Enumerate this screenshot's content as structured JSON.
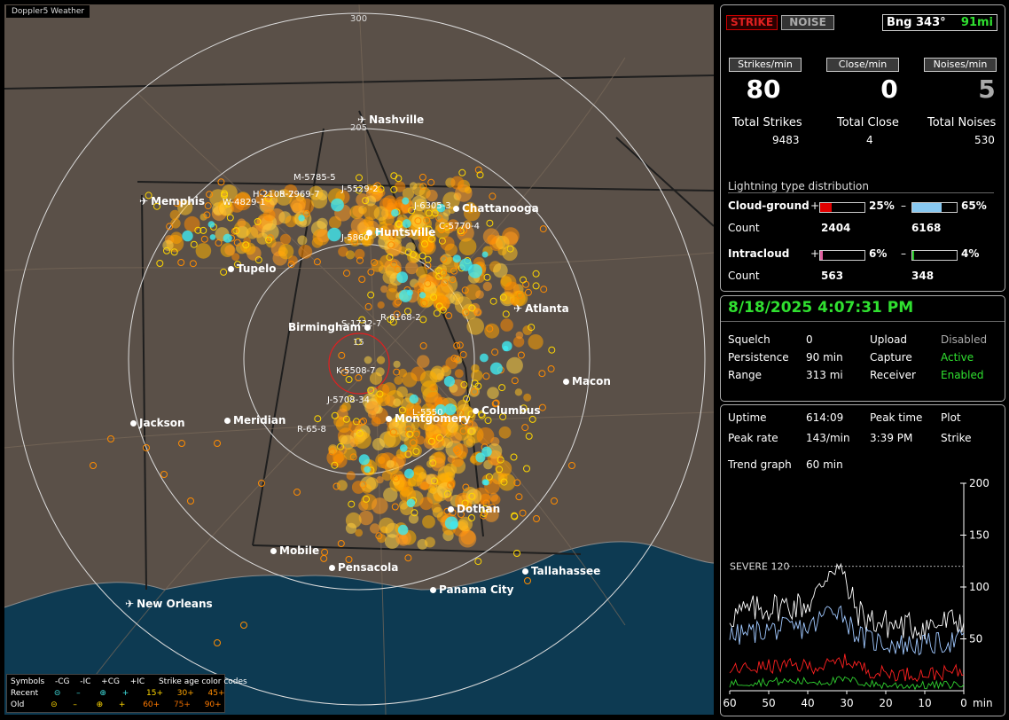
{
  "app_title": "Doppler5 Weather",
  "map": {
    "ring_labels": [
      "300",
      "205",
      "15"
    ],
    "cities": [
      {
        "name": "Nashville",
        "type": "airport"
      },
      {
        "name": "Memphis",
        "type": "airport"
      },
      {
        "name": "Chattanooga",
        "type": "city"
      },
      {
        "name": "Huntsville",
        "type": "city"
      },
      {
        "name": "Tupelo",
        "type": "city"
      },
      {
        "name": "Atlanta",
        "type": "airport"
      },
      {
        "name": "Birmingham",
        "type": "city"
      },
      {
        "name": "Macon",
        "type": "city"
      },
      {
        "name": "Jackson",
        "type": "city"
      },
      {
        "name": "Meridian",
        "type": "city"
      },
      {
        "name": "Montgomery",
        "type": "city"
      },
      {
        "name": "Columbus",
        "type": "city"
      },
      {
        "name": "Dothan",
        "type": "city"
      },
      {
        "name": "Mobile",
        "type": "city"
      },
      {
        "name": "Pensacola",
        "type": "city"
      },
      {
        "name": "Tallahassee",
        "type": "city"
      },
      {
        "name": "Panama City",
        "type": "city"
      },
      {
        "name": "New Orleans",
        "type": "airport"
      }
    ],
    "cell_labels": [
      "M-5785-5",
      "J-5529-2",
      "H-2105-7",
      "R-2969-7",
      "W-4829-1",
      "J-6305-3",
      "C-5770-4",
      "J-5860",
      "S-1732-7",
      "R-6168-2",
      "K-5508-7",
      "J-5708-34",
      "R-65-8",
      "L-5550"
    ]
  },
  "legend": {
    "symbols_label": "Symbols",
    "headers": [
      "-CG",
      "-IC",
      "+CG",
      "+IC"
    ],
    "recent_label": "Recent",
    "old_label": "Old",
    "age_label": "Strike age color codes",
    "recent_ages": [
      "15+",
      "30+",
      "45+"
    ],
    "old_ages": [
      "60+",
      "75+",
      "90+"
    ],
    "age_colors": [
      "#ffd700",
      "#ffa500",
      "#ff8c00",
      "#ff7a00",
      "#e36a00",
      "#c85a00"
    ]
  },
  "top": {
    "strike_btn": "STRIKE",
    "noise_btn": "NOISE",
    "bearing": "Bng 343°",
    "distance": "91mi"
  },
  "rates": {
    "strikes_label": "Strikes/min",
    "close_label": "Close/min",
    "noises_label": "Noises/min",
    "strikes_value": "80",
    "close_value": "0",
    "noises_value": "5"
  },
  "totals": {
    "strikes_label": "Total Strikes",
    "strikes_value": "9483",
    "close_label": "Total Close",
    "close_value": "4",
    "noises_label": "Total Noises",
    "noises_value": "530"
  },
  "distribution": {
    "title": "Lightning type distribution",
    "cg_label": "Cloud-ground",
    "ic_label": "Intracloud",
    "count_label": "Count",
    "plus": "+",
    "minus": "–",
    "cg_pos_pct": "25%",
    "cg_pos_frac": 0.25,
    "cg_pos_count": "2404",
    "cg_neg_pct": "65%",
    "cg_neg_frac": 0.65,
    "cg_neg_count": "6168",
    "ic_pos_pct": "6%",
    "ic_pos_frac": 0.06,
    "ic_pos_count": "563",
    "ic_neg_pct": "4%",
    "ic_neg_frac": 0.04,
    "ic_neg_count": "348",
    "colors": {
      "cg_pos": "#e00000",
      "cg_neg": "#88c8f0",
      "ic_pos": "#e060a0",
      "ic_neg": "#20c020"
    }
  },
  "status": {
    "datetime": "8/18/2025 4:07:31 PM",
    "squelch_label": "Squelch",
    "squelch_value": "0",
    "upload_label": "Upload",
    "upload_value": "Disabled",
    "persistence_label": "Persistence",
    "persistence_value": "90 min",
    "capture_label": "Capture",
    "capture_value": "Active",
    "range_label": "Range",
    "range_value": "313 mi",
    "receiver_label": "Receiver",
    "receiver_value": "Enabled"
  },
  "stats": {
    "uptime_label": "Uptime",
    "uptime_value": "614:09",
    "peak_time_label": "Peak time",
    "plot_label": "Plot",
    "peak_rate_label": "Peak rate",
    "peak_rate_value": "143/min",
    "peak_time_value": "3:39 PM",
    "plot_value": "Strike",
    "trend_label": "Trend graph",
    "trend_value": "60 min"
  },
  "trend_chart": {
    "type": "line",
    "severe_label": "SEVERE 120",
    "severe_value": 120,
    "ylim": [
      0,
      200
    ],
    "y_ticks": [
      "200",
      "150",
      "100",
      "50"
    ],
    "x_ticks": [
      "60",
      "50",
      "40",
      "30",
      "20",
      "10",
      "0"
    ],
    "x_unit": "min",
    "colors": {
      "total": "#ffffff",
      "cg_neg": "#a0c8ff",
      "cg_pos": "#ff2020",
      "ic": "#30d030"
    }
  }
}
